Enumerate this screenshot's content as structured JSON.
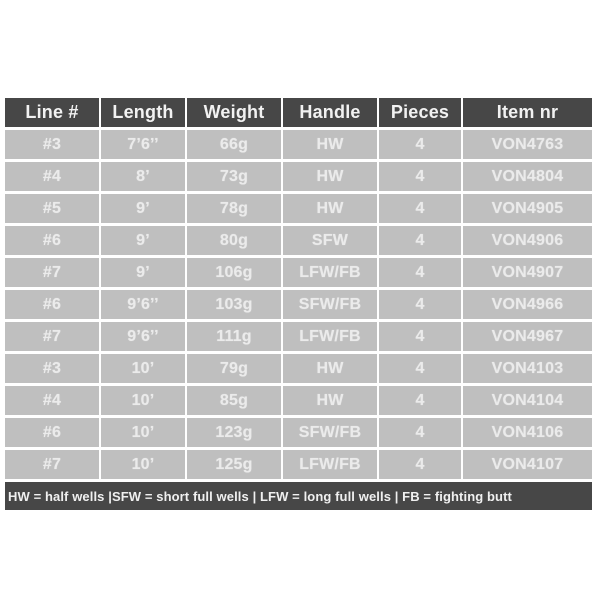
{
  "table": {
    "headers": [
      "Line #",
      "Length",
      "Weight",
      "Handle",
      "Pieces",
      "Item nr"
    ],
    "column_keys": [
      "line-number",
      "length",
      "weight",
      "handle",
      "pieces",
      "item-nr"
    ],
    "rows": [
      [
        "#3",
        "7’6’’",
        "66g",
        "HW",
        "4",
        "VON4763"
      ],
      [
        "#4",
        "8’",
        "73g",
        "HW",
        "4",
        "VON4804"
      ],
      [
        "#5",
        "9’",
        "78g",
        "HW",
        "4",
        "VON4905"
      ],
      [
        "#6",
        "9’",
        "80g",
        "SFW",
        "4",
        "VON4906"
      ],
      [
        "#7",
        "9’",
        "106g",
        "LFW/FB",
        "4",
        "VON4907"
      ],
      [
        "#6",
        "9’6’’",
        "103g",
        "SFW/FB",
        "4",
        "VON4966"
      ],
      [
        "#7",
        "9’6’’",
        "111g",
        "LFW/FB",
        "4",
        "VON4967"
      ],
      [
        "#3",
        "10’",
        "79g",
        "HW",
        "4",
        "VON4103"
      ],
      [
        "#4",
        "10’",
        "85g",
        "HW",
        "4",
        "VON4104"
      ],
      [
        "#6",
        "10’",
        "123g",
        "SFW/FB",
        "4",
        "VON4106"
      ],
      [
        "#7",
        "10’",
        "125g",
        "LFW/FB",
        "4",
        "VON4107"
      ]
    ],
    "footnote": "HW = half wells |SFW = short full wells | LFW = long full wells | FB = fighting butt"
  },
  "colors": {
    "header_bg": "#474747",
    "header_text": "#f2f2f2",
    "row_bg": "#bfbfbf",
    "row_text": "#ebebeb",
    "footer_bg": "#474747",
    "footer_text": "#f0f0f0",
    "gap": "#ffffff"
  }
}
